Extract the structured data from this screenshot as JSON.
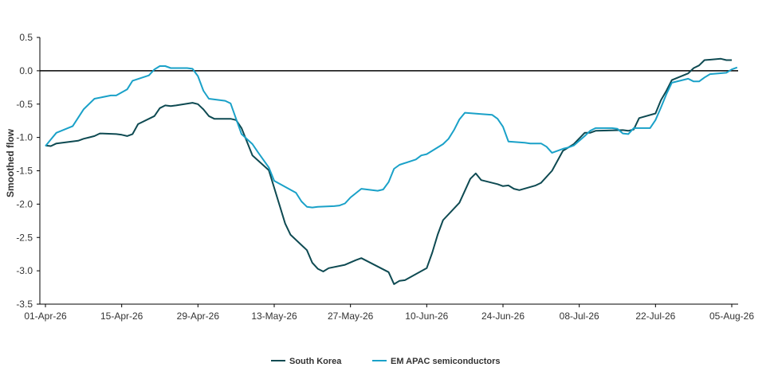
{
  "chart_data": {
    "type": "line",
    "title": "",
    "xlabel": "",
    "ylabel": "Smoothed flow",
    "ylim": [
      -3.5,
      0.5
    ],
    "yticks": [
      "0.5",
      "0.0",
      "-0.5",
      "-1.0",
      "-1.5",
      "-2.0",
      "-2.5",
      "-3.0",
      "-3.5"
    ],
    "xlim": [
      "2026-04-01",
      "2026-08-06"
    ],
    "xticks": [
      {
        "date": "2026-04-01",
        "label": "01-Apr-26"
      },
      {
        "date": "2026-04-15",
        "label": "15-Apr-26"
      },
      {
        "date": "2026-04-29",
        "label": "29-Apr-26"
      },
      {
        "date": "2026-05-13",
        "label": "13-May-26"
      },
      {
        "date": "2026-05-27",
        "label": "27-May-26"
      },
      {
        "date": "2026-06-10",
        "label": "10-Jun-26"
      },
      {
        "date": "2026-06-24",
        "label": "24-Jun-26"
      },
      {
        "date": "2026-07-08",
        "label": "08-Jul-26"
      },
      {
        "date": "2026-07-22",
        "label": "22-Jul-26"
      },
      {
        "date": "2026-08-05",
        "label": "05-Aug-26"
      }
    ],
    "grid": false,
    "legend_position": "bottom",
    "series": [
      {
        "name": "South Korea",
        "color": "#0e4a52",
        "points": [
          [
            "2026-04-01",
            -1.12
          ],
          [
            "2026-04-02",
            -1.13
          ],
          [
            "2026-04-03",
            -1.09
          ],
          [
            "2026-04-05",
            -1.07
          ],
          [
            "2026-04-07",
            -1.05
          ],
          [
            "2026-04-08",
            -1.02
          ],
          [
            "2026-04-09",
            -1.0
          ],
          [
            "2026-04-10",
            -0.98
          ],
          [
            "2026-04-11",
            -0.94
          ],
          [
            "2026-04-14",
            -0.95
          ],
          [
            "2026-04-15",
            -0.96
          ],
          [
            "2026-04-16",
            -0.98
          ],
          [
            "2026-04-17",
            -0.95
          ],
          [
            "2026-04-18",
            -0.8
          ],
          [
            "2026-04-21",
            -0.68
          ],
          [
            "2026-04-22",
            -0.56
          ],
          [
            "2026-04-23",
            -0.52
          ],
          [
            "2026-04-24",
            -0.53
          ],
          [
            "2026-04-25",
            -0.52
          ],
          [
            "2026-04-28",
            -0.48
          ],
          [
            "2026-04-29",
            -0.5
          ],
          [
            "2026-04-30",
            -0.58
          ],
          [
            "2026-05-01",
            -0.68
          ],
          [
            "2026-05-02",
            -0.72
          ],
          [
            "2026-05-05",
            -0.72
          ],
          [
            "2026-05-06",
            -0.74
          ],
          [
            "2026-05-07",
            -0.86
          ],
          [
            "2026-05-09",
            -1.27
          ],
          [
            "2026-05-12",
            -1.49
          ],
          [
            "2026-05-14",
            -2.02
          ],
          [
            "2026-05-15",
            -2.29
          ],
          [
            "2026-05-16",
            -2.46
          ],
          [
            "2026-05-19",
            -2.69
          ],
          [
            "2026-05-20",
            -2.88
          ],
          [
            "2026-05-21",
            -2.97
          ],
          [
            "2026-05-22",
            -3.01
          ],
          [
            "2026-05-23",
            -2.96
          ],
          [
            "2026-05-26",
            -2.91
          ],
          [
            "2026-05-28",
            -2.84
          ],
          [
            "2026-05-29",
            -2.81
          ],
          [
            "2026-06-03",
            -3.02
          ],
          [
            "2026-06-04",
            -3.2
          ],
          [
            "2026-06-05",
            -3.15
          ],
          [
            "2026-06-06",
            -3.14
          ],
          [
            "2026-06-10",
            -2.96
          ],
          [
            "2026-06-11",
            -2.73
          ],
          [
            "2026-06-12",
            -2.46
          ],
          [
            "2026-06-13",
            -2.24
          ],
          [
            "2026-06-16",
            -1.98
          ],
          [
            "2026-06-17",
            -1.8
          ],
          [
            "2026-06-18",
            -1.62
          ],
          [
            "2026-06-19",
            -1.54
          ],
          [
            "2026-06-20",
            -1.64
          ],
          [
            "2026-06-23",
            -1.7
          ],
          [
            "2026-06-24",
            -1.73
          ],
          [
            "2026-06-25",
            -1.72
          ],
          [
            "2026-06-26",
            -1.77
          ],
          [
            "2026-06-27",
            -1.79
          ],
          [
            "2026-06-30",
            -1.72
          ],
          [
            "2026-07-01",
            -1.68
          ],
          [
            "2026-07-03",
            -1.5
          ],
          [
            "2026-07-05",
            -1.2
          ],
          [
            "2026-07-07",
            -1.1
          ],
          [
            "2026-07-09",
            -0.93
          ],
          [
            "2026-07-10",
            -0.93
          ],
          [
            "2026-07-11",
            -0.9
          ],
          [
            "2026-07-16",
            -0.89
          ],
          [
            "2026-07-17",
            -0.9
          ],
          [
            "2026-07-18",
            -0.88
          ],
          [
            "2026-07-19",
            -0.71
          ],
          [
            "2026-07-22",
            -0.64
          ],
          [
            "2026-07-23",
            -0.44
          ],
          [
            "2026-07-24",
            -0.3
          ],
          [
            "2026-07-25",
            -0.14
          ],
          [
            "2026-07-28",
            -0.04
          ],
          [
            "2026-07-29",
            0.04
          ],
          [
            "2026-07-30",
            0.08
          ],
          [
            "2026-07-31",
            0.16
          ],
          [
            "2026-08-03",
            0.18
          ],
          [
            "2026-08-04",
            0.16
          ],
          [
            "2026-08-05",
            0.16
          ]
        ]
      },
      {
        "name": "EM APAC semiconductors",
        "color": "#1aa1c8",
        "points": [
          [
            "2026-04-01",
            -1.13
          ],
          [
            "2026-04-02",
            -1.03
          ],
          [
            "2026-04-03",
            -0.93
          ],
          [
            "2026-04-06",
            -0.83
          ],
          [
            "2026-04-08",
            -0.58
          ],
          [
            "2026-04-10",
            -0.42
          ],
          [
            "2026-04-13",
            -0.37
          ],
          [
            "2026-04-14",
            -0.37
          ],
          [
            "2026-04-16",
            -0.28
          ],
          [
            "2026-04-17",
            -0.15
          ],
          [
            "2026-04-20",
            -0.07
          ],
          [
            "2026-04-21",
            0.02
          ],
          [
            "2026-04-22",
            0.07
          ],
          [
            "2026-04-23",
            0.07
          ],
          [
            "2026-04-24",
            0.04
          ],
          [
            "2026-04-27",
            0.04
          ],
          [
            "2026-04-28",
            0.03
          ],
          [
            "2026-04-29",
            -0.08
          ],
          [
            "2026-04-30",
            -0.3
          ],
          [
            "2026-05-01",
            -0.42
          ],
          [
            "2026-05-04",
            -0.45
          ],
          [
            "2026-05-05",
            -0.49
          ],
          [
            "2026-05-07",
            -0.95
          ],
          [
            "2026-05-09",
            -1.1
          ],
          [
            "2026-05-10",
            -1.22
          ],
          [
            "2026-05-12",
            -1.45
          ],
          [
            "2026-05-13",
            -1.65
          ],
          [
            "2026-05-17",
            -1.83
          ],
          [
            "2026-05-18",
            -1.96
          ],
          [
            "2026-05-19",
            -2.04
          ],
          [
            "2026-05-20",
            -2.05
          ],
          [
            "2026-05-21",
            -2.04
          ],
          [
            "2026-05-24",
            -2.03
          ],
          [
            "2026-05-25",
            -2.02
          ],
          [
            "2026-05-26",
            -1.99
          ],
          [
            "2026-05-27",
            -1.9
          ],
          [
            "2026-05-29",
            -1.77
          ],
          [
            "2026-06-01",
            -1.8
          ],
          [
            "2026-06-02",
            -1.78
          ],
          [
            "2026-06-03",
            -1.67
          ],
          [
            "2026-06-04",
            -1.47
          ],
          [
            "2026-06-05",
            -1.41
          ],
          [
            "2026-06-08",
            -1.33
          ],
          [
            "2026-06-09",
            -1.27
          ],
          [
            "2026-06-10",
            -1.25
          ],
          [
            "2026-06-13",
            -1.1
          ],
          [
            "2026-06-14",
            -1.02
          ],
          [
            "2026-06-15",
            -0.89
          ],
          [
            "2026-06-16",
            -0.73
          ],
          [
            "2026-06-17",
            -0.63
          ],
          [
            "2026-06-20",
            -0.65
          ],
          [
            "2026-06-22",
            -0.66
          ],
          [
            "2026-06-23",
            -0.72
          ],
          [
            "2026-06-24",
            -0.84
          ],
          [
            "2026-06-25",
            -1.06
          ],
          [
            "2026-06-28",
            -1.08
          ],
          [
            "2026-06-29",
            -1.09
          ],
          [
            "2026-07-01",
            -1.09
          ],
          [
            "2026-07-02",
            -1.14
          ],
          [
            "2026-07-03",
            -1.23
          ],
          [
            "2026-07-05",
            -1.17
          ],
          [
            "2026-07-06",
            -1.15
          ],
          [
            "2026-07-07",
            -1.12
          ],
          [
            "2026-07-09",
            -0.98
          ],
          [
            "2026-07-10",
            -0.9
          ],
          [
            "2026-07-11",
            -0.86
          ],
          [
            "2026-07-14",
            -0.86
          ],
          [
            "2026-07-15",
            -0.87
          ],
          [
            "2026-07-16",
            -0.94
          ],
          [
            "2026-07-17",
            -0.95
          ],
          [
            "2026-07-18",
            -0.86
          ],
          [
            "2026-07-21",
            -0.86
          ],
          [
            "2026-07-22",
            -0.74
          ],
          [
            "2026-07-23",
            -0.55
          ],
          [
            "2026-07-24",
            -0.35
          ],
          [
            "2026-07-25",
            -0.18
          ],
          [
            "2026-07-28",
            -0.12
          ],
          [
            "2026-07-29",
            -0.16
          ],
          [
            "2026-07-30",
            -0.16
          ],
          [
            "2026-07-31",
            -0.1
          ],
          [
            "2026-08-01",
            -0.05
          ],
          [
            "2026-08-04",
            -0.03
          ],
          [
            "2026-08-05",
            0.02
          ],
          [
            "2026-08-06",
            0.05
          ]
        ]
      }
    ]
  }
}
